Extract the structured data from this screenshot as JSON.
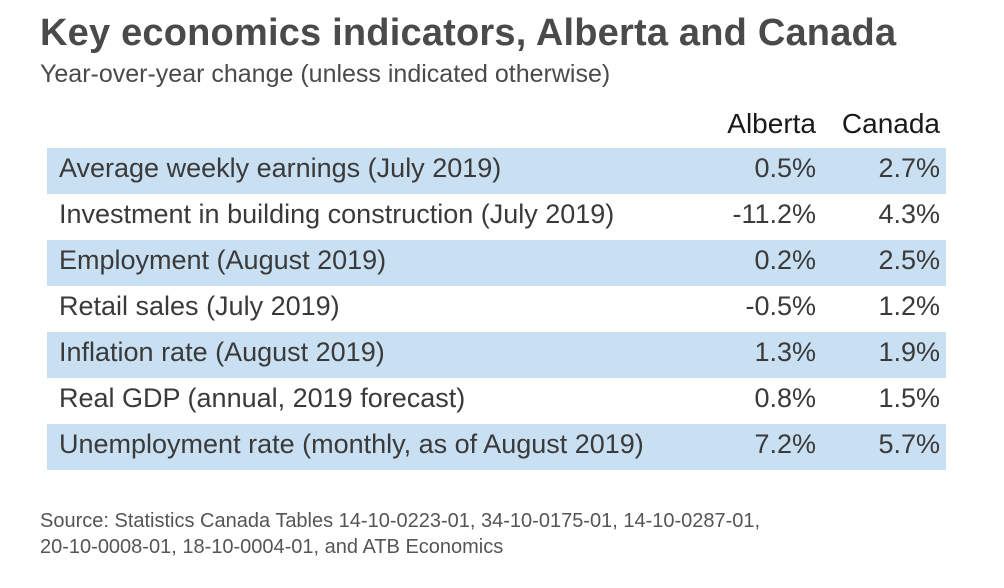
{
  "chart_data": {
    "type": "table",
    "title": "Key economics indicators, Alberta and Canada",
    "subtitle": "Year-over-year change (unless indicated otherwise)",
    "columns": [
      "Alberta",
      "Canada"
    ],
    "rows": [
      {
        "label": "Average weekly earnings (July 2019)",
        "alberta": "0.5%",
        "canada": "2.7%"
      },
      {
        "label": "Investment in building construction (July 2019)",
        "alberta": "-11.2%",
        "canada": "4.3%"
      },
      {
        "label": "Employment (August 2019)",
        "alberta": "0.2%",
        "canada": "2.5%"
      },
      {
        "label": "Retail sales (July 2019)",
        "alberta": "-0.5%",
        "canada": "1.2%"
      },
      {
        "label": "Inflation rate (August 2019)",
        "alberta": "1.3%",
        "canada": "1.9%"
      },
      {
        "label": "Real GDP (annual, 2019 forecast)",
        "alberta": "0.8%",
        "canada": "1.5%"
      },
      {
        "label": "Unemployment rate (monthly, as of August 2019)",
        "alberta": "7.2%",
        "canada": "5.7%"
      }
    ],
    "source_line1": "Source: Statistics Canada Tables 14-10-0223-01, 34-10-0175-01, 14-10-0287-01,",
    "source_line2": "20-10-0008-01, 18-10-0004-01, and ATB Economics",
    "colors": {
      "row_shading": "#c9dff2",
      "title": "#4a4a4a"
    }
  }
}
